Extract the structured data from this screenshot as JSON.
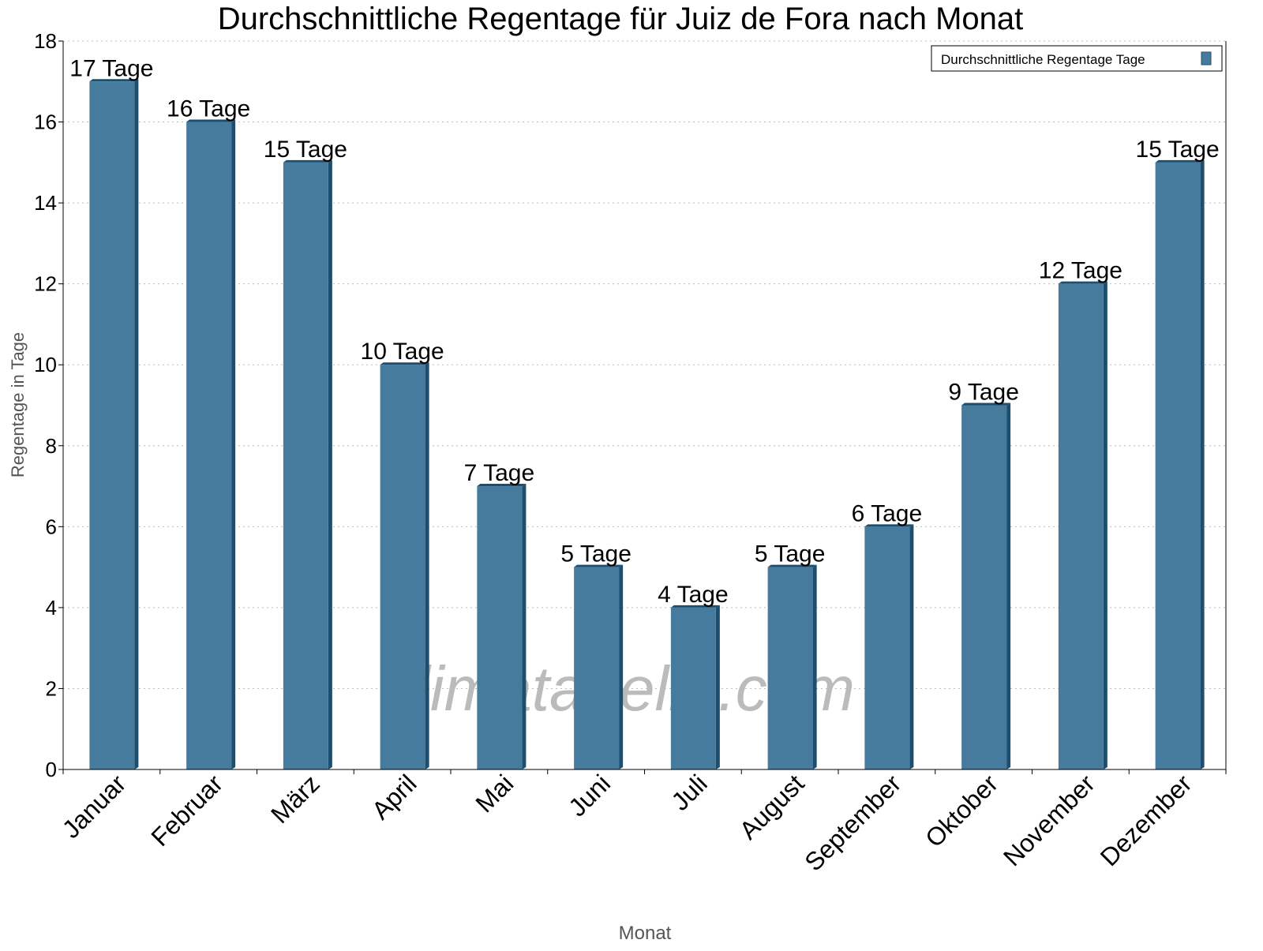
{
  "chart_data": {
    "type": "bar",
    "title": "Durchschnittliche Regentage für Juiz de Fora nach Monat",
    "xlabel": "Monat",
    "ylabel": "Regentage in Tage",
    "ylim": [
      0,
      18
    ],
    "yticks": [
      0,
      2,
      4,
      6,
      8,
      10,
      12,
      14,
      16,
      18
    ],
    "grid": true,
    "legend_position": "top-right",
    "categories": [
      "Januar",
      "Februar",
      "März",
      "April",
      "Mai",
      "Juni",
      "Juli",
      "August",
      "September",
      "Oktober",
      "November",
      "Dezember"
    ],
    "series": [
      {
        "name": "Durchschnittliche Regentage Tage",
        "values": [
          17,
          16,
          15,
          10,
          7,
          5,
          4,
          5,
          6,
          9,
          12,
          15
        ],
        "labels": [
          "17 Tage",
          "16 Tage",
          "15 Tage",
          "10 Tage",
          "7 Tage",
          "5 Tage",
          "4 Tage",
          "5 Tage",
          "6 Tage",
          "9 Tage",
          "12 Tage",
          "15 Tage"
        ]
      }
    ],
    "colors": {
      "bar": "#477b9e",
      "bar_shade": "#1e4e6e"
    }
  },
  "watermark": "klimatabelle.com"
}
